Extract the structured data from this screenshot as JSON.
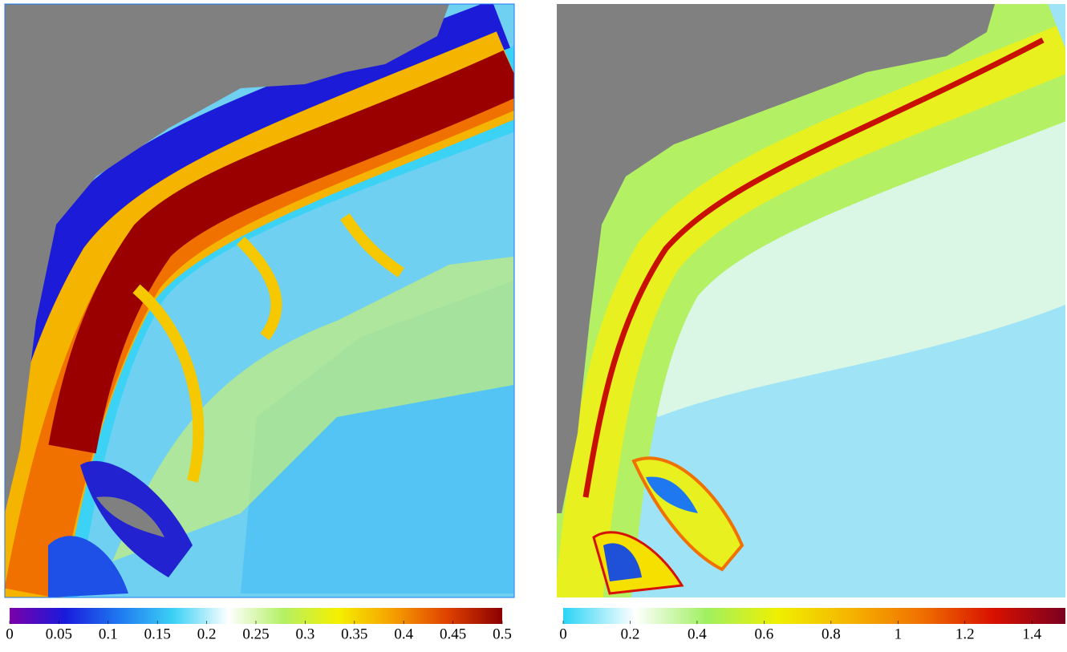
{
  "chart_data": [
    {
      "type": "heatmap",
      "colormap": [
        "#7a00a8",
        "#1a1adc",
        "#1e78f0",
        "#3cd2f5",
        "#ffffff",
        "#b4f064",
        "#f5f000",
        "#f5a000",
        "#e04000",
        "#8a0000"
      ],
      "xlim": [
        0,
        0.5
      ],
      "xticks": [
        0,
        0.05,
        0.1,
        0.15,
        0.2,
        0.25,
        0.3,
        0.35,
        0.4,
        0.45,
        0.5
      ]
    },
    {
      "type": "heatmap",
      "colormap": [
        "#2ad4f5",
        "#ffffff",
        "#a0f060",
        "#f0f000",
        "#f5b400",
        "#f07000",
        "#d81000",
        "#7a0020"
      ],
      "xlim": [
        0,
        1.5
      ],
      "xticks": [
        0,
        0.2,
        0.4,
        0.6,
        0.8,
        1,
        1.2,
        1.4
      ]
    }
  ]
}
